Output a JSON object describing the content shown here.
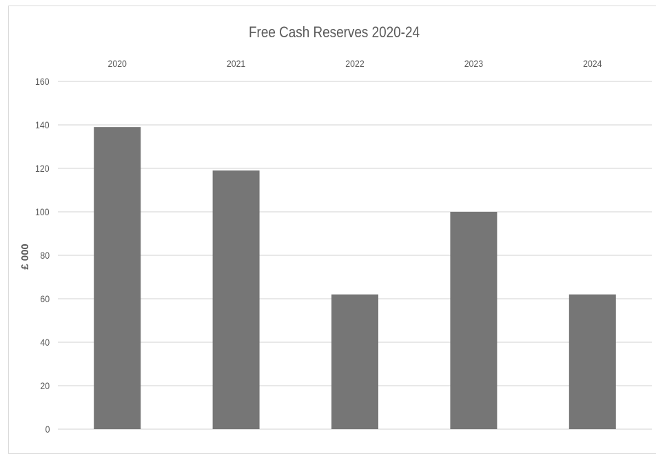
{
  "chart_data": {
    "type": "bar",
    "title": "Free Cash Reserves 2020-24",
    "xlabel": "",
    "ylabel": "£ 000",
    "categories": [
      "2020",
      "2021",
      "2022",
      "2023",
      "2024"
    ],
    "values": [
      139,
      119,
      62,
      100,
      62
    ],
    "ylim": [
      0,
      160
    ],
    "yticks": [
      0,
      20,
      40,
      60,
      80,
      100,
      120,
      140,
      160
    ],
    "x_axis_position": "top",
    "grid": true,
    "legend": "none",
    "bar_color": "#767676",
    "gridline_color": "#d9d9d9",
    "text_color": "#595959"
  }
}
